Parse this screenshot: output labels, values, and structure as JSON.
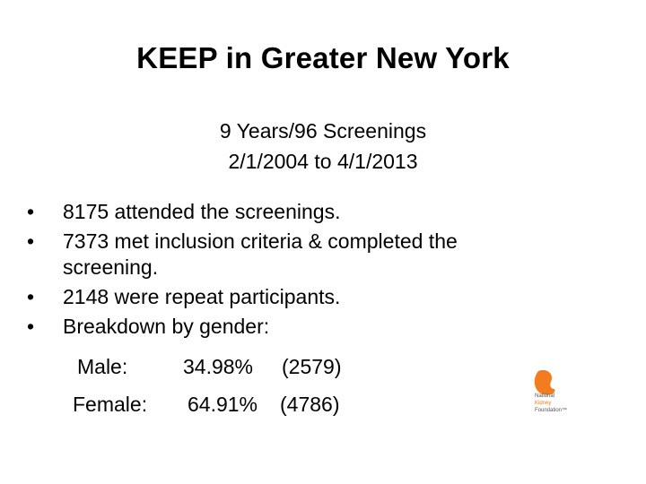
{
  "slide": {
    "title": "KEEP in Greater New York",
    "subtitle_lines": [
      "9 Years/96 Screenings",
      "2/1/2004 to 4/1/2013"
    ],
    "bullet_symbol": "•",
    "bullets": [
      "8175 attended the screenings.",
      "7373 met inclusion criteria & completed the screening.",
      "2148 were repeat participants.",
      "Breakdown by gender:"
    ],
    "gender": [
      {
        "label": "Male:",
        "percent": "34.98%",
        "count": "(2579)"
      },
      {
        "label": "Female:",
        "percent": "64.91%",
        "count": "(4786)"
      }
    ]
  },
  "logo": {
    "icon": "kidney-logo-icon",
    "lines": [
      "National",
      "Kidney",
      "Foundation™"
    ],
    "brand_color": "#f47c20"
  }
}
